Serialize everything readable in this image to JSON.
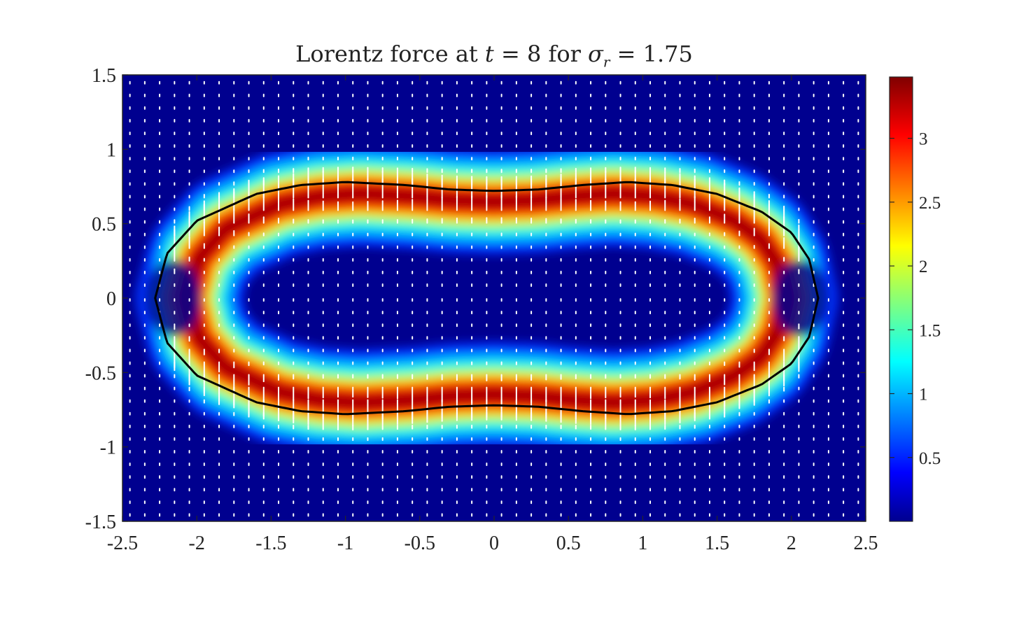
{
  "chart_data": {
    "type": "heatmap",
    "title": {
      "prefix": "Lorentz force at ",
      "var_t": "t",
      "eq1": " = 8 for ",
      "var_sigma": "σ",
      "sub_r": "r",
      "eq2": " = 1.75"
    },
    "xlim": [
      -2.5,
      2.5
    ],
    "ylim": [
      -1.5,
      1.5
    ],
    "x_ticks": [
      -2.5,
      -2,
      -1.5,
      -1,
      -0.5,
      0,
      0.5,
      1,
      1.5,
      2,
      2.5
    ],
    "x_tick_labels": [
      "-2.5",
      "-2",
      "-1.5",
      "-1",
      "-0.5",
      "0",
      "0.5",
      "1",
      "1.5",
      "2",
      "2.5"
    ],
    "y_ticks": [
      1.5,
      1,
      0.5,
      0,
      -0.5,
      -1,
      -1.5
    ],
    "y_tick_labels": [
      "1.5",
      "1",
      "0.5",
      "0",
      "-0.5",
      "-1",
      "-1.5"
    ],
    "colorbar": {
      "colormap": "jet",
      "range": [
        0,
        3.48
      ],
      "ticks": [
        0.5,
        1,
        1.5,
        2,
        2.5,
        3
      ],
      "tick_labels": [
        "0.5",
        "1",
        "1.5",
        "2",
        "2.5",
        "3"
      ]
    },
    "interface_curve": {
      "description_shown": "closed black contour (droplet interface)",
      "x_left": -2.28,
      "x_right": 2.18,
      "top_profile": [
        [
          -2.28,
          0.0
        ],
        [
          -2.2,
          0.3
        ],
        [
          -2.0,
          0.52
        ],
        [
          -1.6,
          0.7
        ],
        [
          -1.3,
          0.76
        ],
        [
          -1.0,
          0.78
        ],
        [
          -0.6,
          0.76
        ],
        [
          -0.3,
          0.73
        ],
        [
          0.0,
          0.72
        ],
        [
          0.3,
          0.73
        ],
        [
          0.6,
          0.76
        ],
        [
          0.9,
          0.78
        ],
        [
          1.2,
          0.76
        ],
        [
          1.5,
          0.7
        ],
        [
          1.8,
          0.58
        ],
        [
          2.0,
          0.44
        ],
        [
          2.12,
          0.26
        ],
        [
          2.18,
          0.0
        ]
      ]
    },
    "field_peak_magnitude": 3.4,
    "vector_field": "white quiver arrows, pointing outward from the interface near the band"
  }
}
